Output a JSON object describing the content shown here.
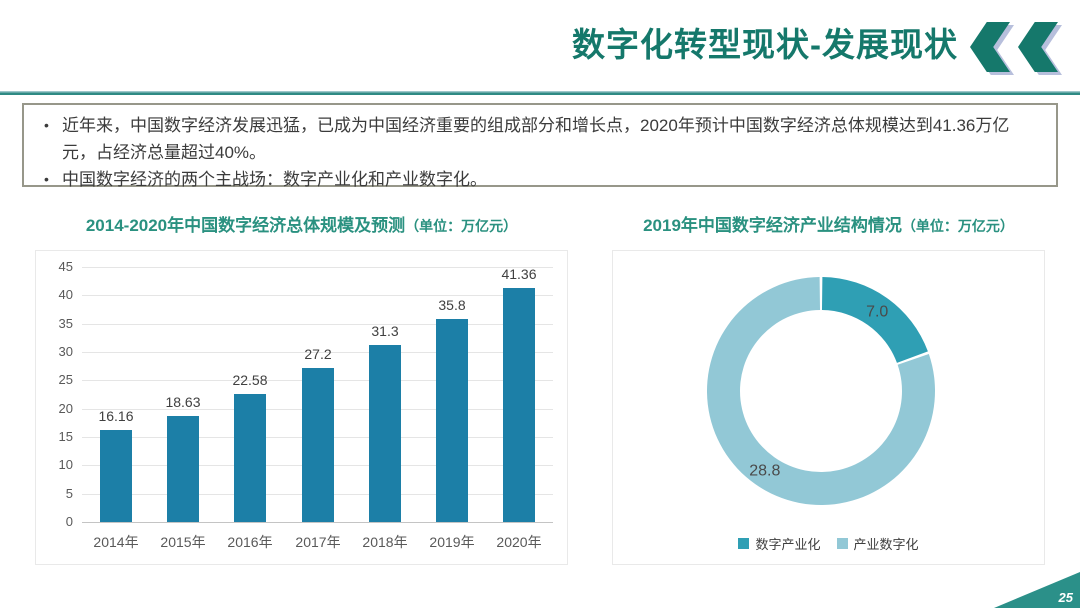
{
  "slide": {
    "title": "数字化转型现状-发展现状",
    "page_number": "25"
  },
  "colors": {
    "title_teal": "#15786b",
    "chart_title_green": "#2a9180",
    "bar_blue": "#1c7fa7",
    "donut_dark": "#2f9fb4",
    "donut_light": "#92c8d6",
    "body_text": "#3b3b3b"
  },
  "bullets": [
    "近年来，中国数字经济发展迅猛，已成为中国经济重要的组成部分和增长点，2020年预计中国数字经济总体规模达到41.36万亿元，占经济总量超过40%。",
    "中国数字经济的两个主战场：数字产业化和产业数字化。"
  ],
  "chart_data": [
    {
      "type": "bar",
      "title": "2014-2020年中国数字经济总体规模及预测",
      "unit_label": "（单位：万亿元）",
      "categories": [
        "2014年",
        "2015年",
        "2016年",
        "2017年",
        "2018年",
        "2019年",
        "2020年"
      ],
      "values": [
        16.16,
        18.63,
        22.58,
        27.2,
        31.3,
        35.8,
        41.36
      ],
      "labels": [
        "16.16",
        "18.63",
        "22.58",
        "27.2",
        "31.3",
        "35.8",
        "41.36"
      ],
      "ylim": [
        0,
        45
      ],
      "ytick_step": 5,
      "bar_color": "#1c7fa7",
      "grid": true,
      "legend": "none"
    },
    {
      "type": "donut",
      "title": "2019年中国数字经济产业结构情况",
      "unit_label": "（单位：万亿元）",
      "series": [
        {
          "name": "数字产业化",
          "value": 7.0,
          "label": "7.0",
          "color": "#2f9fb4"
        },
        {
          "name": "产业数字化",
          "value": 28.8,
          "label": "28.8",
          "color": "#92c8d6"
        }
      ],
      "start_angle_deg": 0,
      "legend_position": "bottom"
    }
  ]
}
